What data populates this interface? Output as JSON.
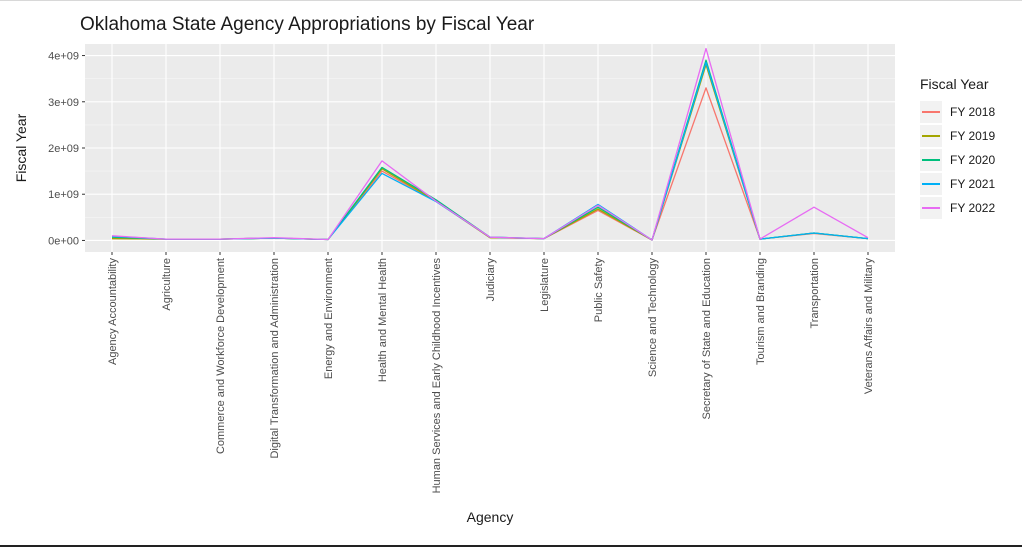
{
  "chart_data": {
    "type": "line",
    "title": "Oklahoma State Agency Appropriations by Fiscal Year",
    "xlabel": "Agency",
    "ylabel": "Fiscal Year",
    "ylim": [
      -250000000,
      4250000000
    ],
    "yticks": [
      0,
      1000000000,
      2000000000,
      3000000000,
      4000000000
    ],
    "ytick_labels": [
      "0e+00",
      "1e+09",
      "2e+09",
      "3e+09",
      "4e+09"
    ],
    "categories": [
      "Agency Accountability",
      "Agriculture",
      "Commerce and Workforce Development",
      "Digital Transformation and Administration",
      "Energy and Environment",
      "Health and Mental Health",
      "Human Services and Early Childhood Incentives",
      "Judiciary",
      "Legislature",
      "Public Safety",
      "Science and Technology",
      "Secretary of State and Education",
      "Tourism and Branding",
      "Transportation",
      "Veterans Affairs and Military"
    ],
    "legend_title": "Fiscal Year",
    "series": [
      {
        "name": "FY 2018",
        "color": "#F8766D",
        "values": [
          40000000,
          30000000,
          30000000,
          50000000,
          20000000,
          1500000000,
          850000000,
          60000000,
          40000000,
          650000000,
          10000000,
          3300000000,
          30000000,
          150000000,
          40000000
        ]
      },
      {
        "name": "FY 2019",
        "color": "#A3A500",
        "values": [
          40000000,
          30000000,
          30000000,
          50000000,
          20000000,
          1550000000,
          850000000,
          60000000,
          40000000,
          680000000,
          10000000,
          3800000000,
          30000000,
          160000000,
          40000000
        ]
      },
      {
        "name": "FY 2020",
        "color": "#00BF7D",
        "values": [
          70000000,
          30000000,
          30000000,
          50000000,
          20000000,
          1580000000,
          880000000,
          70000000,
          40000000,
          720000000,
          10000000,
          3900000000,
          30000000,
          160000000,
          40000000
        ]
      },
      {
        "name": "FY 2021",
        "color": "#00B0F6",
        "values": [
          90000000,
          30000000,
          30000000,
          50000000,
          20000000,
          1450000000,
          840000000,
          70000000,
          40000000,
          780000000,
          10000000,
          3850000000,
          30000000,
          160000000,
          40000000
        ]
      },
      {
        "name": "FY 2022",
        "color": "#E76BF3",
        "values": [
          100000000,
          30000000,
          30000000,
          60000000,
          20000000,
          1720000000,
          850000000,
          70000000,
          40000000,
          760000000,
          10000000,
          4150000000,
          30000000,
          720000000,
          60000000
        ]
      }
    ],
    "grid": true,
    "legend_position": "right"
  }
}
